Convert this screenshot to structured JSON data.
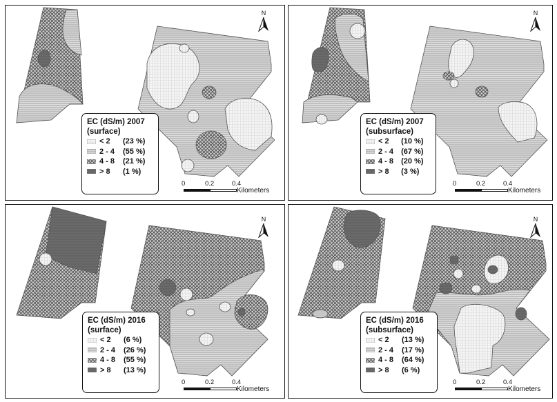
{
  "colors": {
    "lt2": "#efefef",
    "c2to4": "#c2c2c2",
    "c4to8": "#999999",
    "gt8": "#6e6e6e",
    "border": "#111111"
  },
  "classes": [
    "< 2",
    "2 - 4",
    "4 - 8",
    "> 8"
  ],
  "north_label": "N",
  "scale": {
    "ticks": [
      "0",
      "0.2",
      "0.4"
    ],
    "unit": "Kilometers"
  },
  "panels": [
    {
      "id": "2007-surface",
      "title_line1": "EC (dS/m) 2007",
      "title_line2": "(surface)",
      "percents": [
        "(23 %)",
        "(55 %)",
        "(21 %)",
        "(1 %)"
      ]
    },
    {
      "id": "2007-subsurface",
      "title_line1": "EC (dS/m) 2007",
      "title_line2": "(subsurface)",
      "percents": [
        "(10 %)",
        "(67 %)",
        "(20 %)",
        "(3 %)"
      ]
    },
    {
      "id": "2016-surface",
      "title_line1": "EC (dS/m) 2016",
      "title_line2": "(surface)",
      "percents": [
        "(6 %)",
        "(26 %)",
        "(55 %)",
        "(13 %)"
      ]
    },
    {
      "id": "2016-subsurface",
      "title_line1": "EC (dS/m) 2016",
      "title_line2": "(subsurface)",
      "percents": [
        "(13 %)",
        "(17 %)",
        "(64 %)",
        "(6 %)"
      ]
    }
  ]
}
